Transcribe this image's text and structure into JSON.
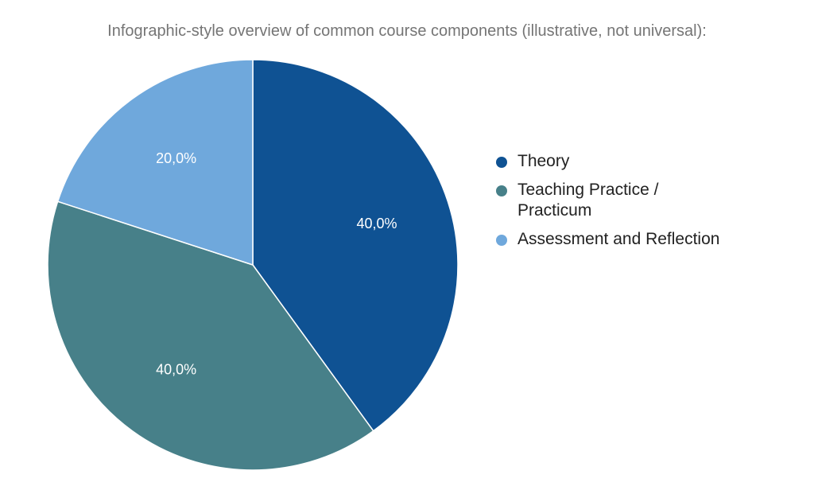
{
  "chart_data": {
    "type": "pie",
    "title": "Infographic-style overview of common course components (illustrative, not universal):",
    "categories": [
      "Theory",
      "Teaching Practice / Practicum",
      "Assessment and Reflection"
    ],
    "values": [
      40.0,
      40.0,
      20.0
    ],
    "labels": [
      "40,0%",
      "40,0%",
      "20,0%"
    ],
    "colors": [
      "#0f5293",
      "#478089",
      "#6fa8dc"
    ],
    "legend_position": "right"
  }
}
